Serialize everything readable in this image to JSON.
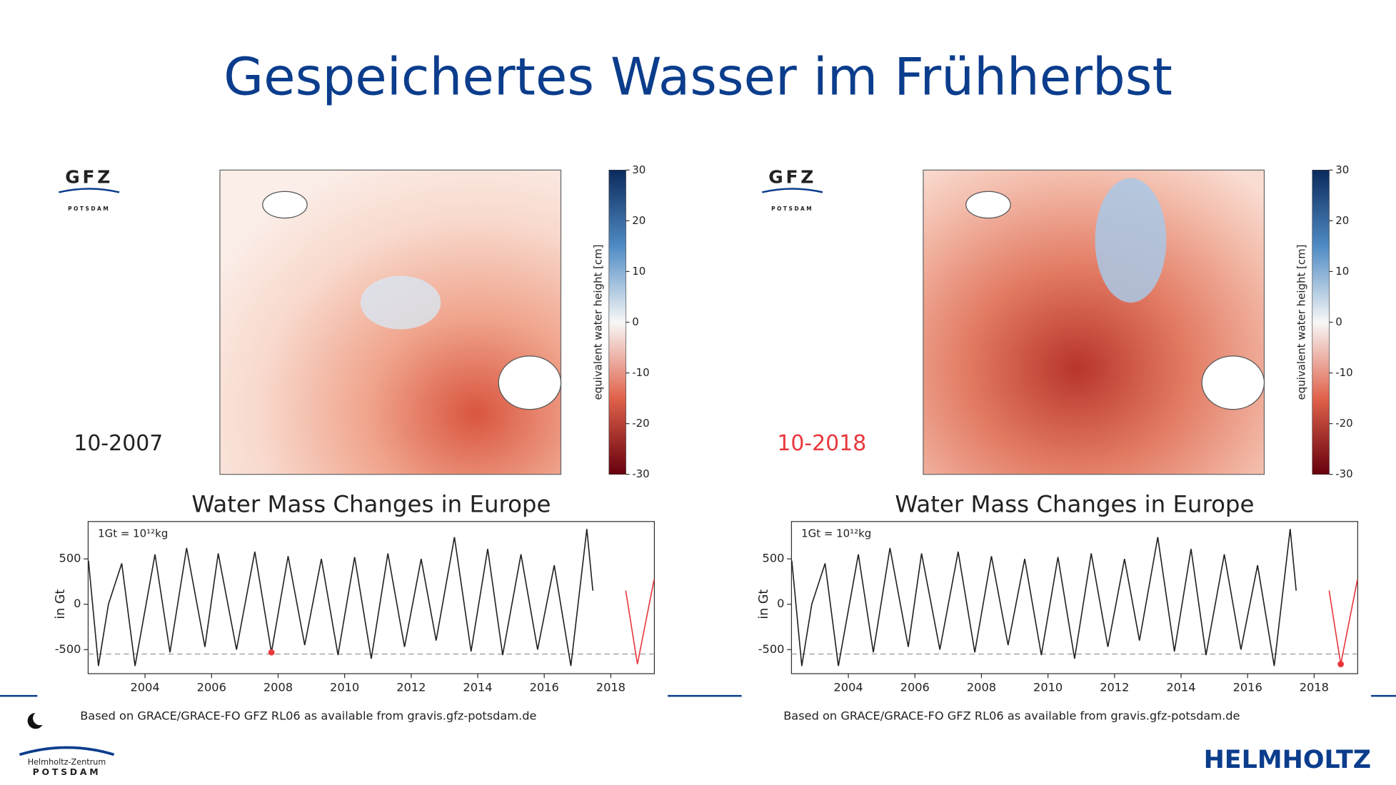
{
  "slide": {
    "title": "Gespeichertes Wasser im Frühherbst",
    "brand": "HELMHOLTZ",
    "logo_top": "Helmholtz-Zentrum",
    "logo_bottom": "POTSDAM"
  },
  "panels": [
    {
      "logo": "GFZ",
      "logo_sub": "POTSDAM",
      "date": "10-2007",
      "date_color": "#222222",
      "source": "Based on GRACE/GRACE-FO GFZ RL06 as available from gravis.gfz-potsdam.de",
      "colorbar": {
        "label": "equivalent water height [cm]",
        "lim": [
          -30,
          30
        ],
        "ticks": [
          30,
          20,
          10,
          0,
          -10,
          -20,
          -30
        ]
      }
    },
    {
      "logo": "GFZ",
      "logo_sub": "POTSDAM",
      "date": "10-2018",
      "date_color": "#e8383d",
      "source": "Based on GRACE/GRACE-FO GFZ RL06 as available from gravis.gfz-potsdam.de",
      "colorbar": {
        "label": "equivalent water height [cm]",
        "lim": [
          -30,
          30
        ],
        "ticks": [
          30,
          20,
          10,
          0,
          -10,
          -20,
          -30
        ]
      }
    }
  ],
  "chart_data": [
    {
      "type": "line",
      "title": "Water Mass Changes in Europe",
      "ylabel": "in Gt",
      "annotation": "1Gt = 10¹²kg",
      "xlim": [
        2002.29,
        2019.31
      ],
      "ylim": [
        -765,
        912
      ],
      "xticks": [
        2004,
        2006,
        2008,
        2010,
        2012,
        2014,
        2016,
        2018
      ],
      "yticks": [
        500,
        0,
        -500
      ],
      "reference_line": -549,
      "series": [
        {
          "color": "#222222",
          "x": [
            2002.3,
            2002.6,
            2002.9,
            2003.3,
            2003.7,
            2004.3,
            2004.75,
            2005.25,
            2005.8,
            2006.2,
            2006.75,
            2007.3,
            2007.8,
            2008.3,
            2008.8,
            2009.3,
            2009.8,
            2010.3,
            2010.8,
            2011.3,
            2011.8,
            2012.3,
            2012.75,
            2013.3,
            2013.8,
            2014.3,
            2014.75,
            2015.3,
            2015.8,
            2016.3,
            2016.8,
            2017.28,
            2017.46
          ],
          "values": [
            480,
            -680,
            0,
            450,
            -680,
            550,
            -530,
            620,
            -470,
            560,
            -500,
            580,
            -530,
            530,
            -450,
            500,
            -560,
            520,
            -600,
            560,
            -470,
            500,
            -400,
            740,
            -520,
            610,
            -560,
            550,
            -500,
            430,
            -680,
            830,
            150
          ]
        },
        {
          "color": "#e8383d",
          "x": [
            2018.45,
            2018.8,
            2019.3
          ],
          "values": [
            150,
            -660,
            270
          ]
        }
      ],
      "highlight": {
        "x": 2007.8,
        "value": -530,
        "color": "#e8383d"
      }
    },
    {
      "type": "line",
      "title": "Water Mass Changes in Europe",
      "ylabel": "in Gt",
      "annotation": "1Gt = 10¹²kg",
      "xlim": [
        2002.29,
        2019.31
      ],
      "ylim": [
        -765,
        912
      ],
      "xticks": [
        2004,
        2006,
        2008,
        2010,
        2012,
        2014,
        2016,
        2018
      ],
      "yticks": [
        500,
        0,
        -500
      ],
      "reference_line": -549,
      "series": [
        {
          "color": "#222222",
          "x": [
            2002.3,
            2002.6,
            2002.9,
            2003.3,
            2003.7,
            2004.3,
            2004.75,
            2005.25,
            2005.8,
            2006.2,
            2006.75,
            2007.3,
            2007.8,
            2008.3,
            2008.8,
            2009.3,
            2009.8,
            2010.3,
            2010.8,
            2011.3,
            2011.8,
            2012.3,
            2012.75,
            2013.3,
            2013.8,
            2014.3,
            2014.75,
            2015.3,
            2015.8,
            2016.3,
            2016.8,
            2017.28,
            2017.46
          ],
          "values": [
            480,
            -680,
            0,
            450,
            -680,
            550,
            -530,
            620,
            -470,
            560,
            -500,
            580,
            -530,
            530,
            -450,
            500,
            -560,
            520,
            -600,
            560,
            -470,
            500,
            -400,
            740,
            -520,
            610,
            -560,
            550,
            -500,
            430,
            -680,
            830,
            150
          ]
        },
        {
          "color": "#e8383d",
          "x": [
            2018.45,
            2018.8,
            2019.3
          ],
          "values": [
            150,
            -660,
            270
          ]
        }
      ],
      "highlight": {
        "x": 2018.8,
        "value": -660,
        "color": "#e8383d"
      }
    }
  ]
}
